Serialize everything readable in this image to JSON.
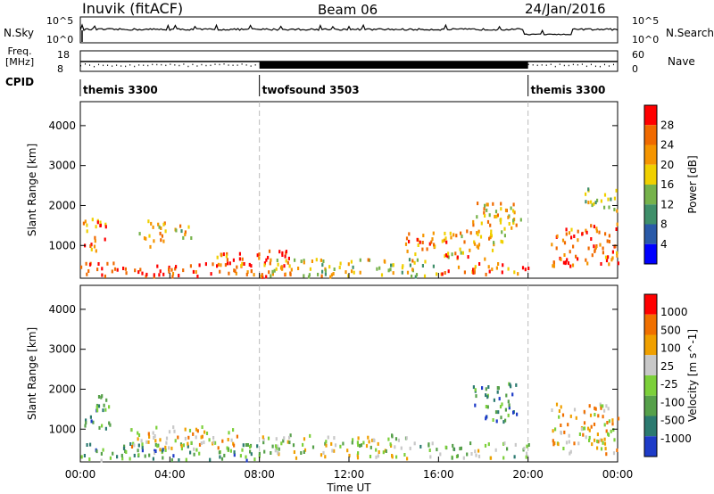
{
  "header": {
    "title": "Inuvik (fitACF)",
    "beam": "Beam 06",
    "date": "24/Jan/2016"
  },
  "side_labels": {
    "nsky": "N.Sky",
    "freq": "Freq.",
    "freq_unit": "[MHz]",
    "cpid": "CPID",
    "nsearch": "N.Search",
    "nave": "Nave"
  },
  "noise_axis": {
    "left_top": "10^5",
    "left_bottom": "10^0",
    "right_top": "10^5",
    "right_bottom": "10^0"
  },
  "freq_axis": {
    "left_top": "18",
    "left_bottom": "8",
    "right_top": "60",
    "right_bottom": "0"
  },
  "cpid_segments": [
    {
      "label": "themis 3300",
      "start_hour": 0
    },
    {
      "label": "twofsound 3503",
      "start_hour": 8
    },
    {
      "label": "themis 3300",
      "start_hour": 20
    }
  ],
  "chart_data": [
    {
      "type": "heatmap",
      "title": "",
      "ylabel": "Slant Range [km]",
      "xlabel": "",
      "x_range_hours": [
        0,
        24
      ],
      "ylim": [
        180,
        4600
      ],
      "yticks": [
        1000,
        2000,
        3000,
        4000
      ],
      "colorbar": {
        "label": "Power [dB]",
        "ticks": [
          "4",
          "8",
          "12",
          "16",
          "20",
          "24",
          "28"
        ]
      },
      "blobs": [
        {
          "t0": 0.1,
          "t1": 1.2,
          "r0": 900,
          "r1": 1800,
          "v": 0.75
        },
        {
          "t0": 2.6,
          "t1": 3.8,
          "r0": 1000,
          "r1": 1700,
          "v": 0.7
        },
        {
          "t0": 4.2,
          "t1": 5.0,
          "r0": 1200,
          "r1": 1700,
          "v": 0.55
        },
        {
          "t0": 0,
          "t1": 8.5,
          "r0": 250,
          "r1": 600,
          "v": 0.88
        },
        {
          "t0": 6.0,
          "t1": 9.5,
          "r0": 300,
          "r1": 900,
          "v": 0.8
        },
        {
          "t0": 8.0,
          "t1": 16.0,
          "r0": 250,
          "r1": 700,
          "v": 0.55
        },
        {
          "t0": 14.5,
          "t1": 18.5,
          "r0": 700,
          "r1": 1400,
          "v": 0.7
        },
        {
          "t0": 16.0,
          "t1": 20.0,
          "r0": 300,
          "r1": 600,
          "v": 0.8
        },
        {
          "t0": 17.5,
          "t1": 19.8,
          "r0": 1100,
          "r1": 2100,
          "v": 0.6
        },
        {
          "t0": 21.0,
          "t1": 24.0,
          "r0": 500,
          "r1": 1600,
          "v": 0.82
        },
        {
          "t0": 22.5,
          "t1": 24.0,
          "r0": 1900,
          "r1": 2500,
          "v": 0.45
        }
      ]
    },
    {
      "type": "heatmap",
      "title": "",
      "ylabel": "Slant Range [km]",
      "xlabel": "Time UT",
      "x_range_hours": [
        0,
        24
      ],
      "xticks": [
        "00:00",
        "04:00",
        "08:00",
        "12:00",
        "16:00",
        "20:00",
        "00:00"
      ],
      "ylim": [
        180,
        4600
      ],
      "yticks": [
        1000,
        2000,
        3000,
        4000
      ],
      "colorbar": {
        "label": "Velocity [m s^-1]",
        "ticks": [
          "1000",
          "500",
          "100",
          "25",
          "-25",
          "-100",
          "-500",
          "-1000"
        ]
      },
      "blobs": [
        {
          "t0": 0.1,
          "t1": 1.3,
          "r0": 1000,
          "r1": 1900,
          "v": 0.25
        },
        {
          "t0": 0,
          "t1": 8.0,
          "r0": 250,
          "r1": 700,
          "v": 0.3
        },
        {
          "t0": 2.0,
          "t1": 7.0,
          "r0": 500,
          "r1": 1100,
          "v": 0.6
        },
        {
          "t0": 8.0,
          "t1": 15.0,
          "r0": 300,
          "r1": 900,
          "v": 0.5
        },
        {
          "t0": 15.0,
          "t1": 20.0,
          "r0": 300,
          "r1": 700,
          "v": 0.45
        },
        {
          "t0": 17.5,
          "t1": 19.5,
          "r0": 1200,
          "r1": 2200,
          "v": 0.2
        },
        {
          "t0": 21.0,
          "t1": 24.0,
          "r0": 400,
          "r1": 1700,
          "v": 0.62
        }
      ]
    }
  ],
  "colors": {
    "power": [
      "#0000ff",
      "#2a5aa8",
      "#3f8f6a",
      "#76b24b",
      "#f0d000",
      "#f59500",
      "#f06a00",
      "#ff0000"
    ],
    "velocity": [
      "#1e3cc8",
      "#2c7a70",
      "#56a04a",
      "#7cd03a",
      "#c8c8c8",
      "#f0a000",
      "#f07000",
      "#ff0000"
    ]
  }
}
